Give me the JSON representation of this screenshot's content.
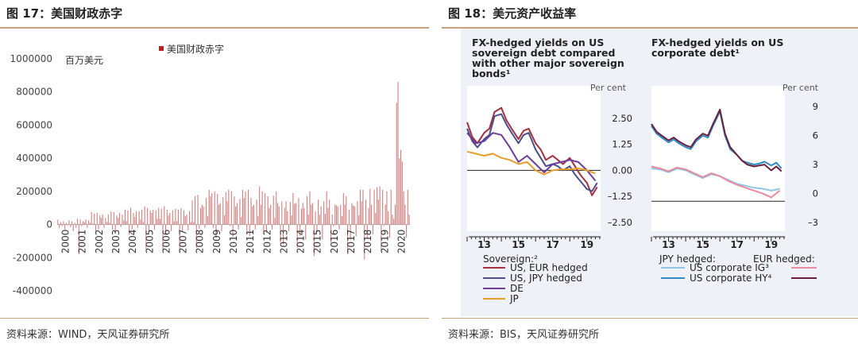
{
  "left": {
    "fig_title": "图 17：美国财政赤字",
    "source": "资料来源：WIND，天风证券研究所",
    "chart_data": {
      "type": "bar",
      "unit_label": "百万美元",
      "legend": "美国财政赤字",
      "color": "#b22222",
      "ylim": [
        -400000,
        1000000
      ],
      "yticks": [
        "1000000",
        "800000",
        "600000",
        "400000",
        "200000",
        "0",
        "-200000",
        "-400000"
      ],
      "ytick_values": [
        1000000,
        800000,
        600000,
        400000,
        200000,
        0,
        -200000,
        -400000
      ],
      "x_years": [
        "2000",
        "2001",
        "2002",
        "2003",
        "2004",
        "2005",
        "2006",
        "2007",
        "2008",
        "2009",
        "2010",
        "2011",
        "2012",
        "2013",
        "2014",
        "2015",
        "2016",
        "2017",
        "2018",
        "2019",
        "2020"
      ],
      "monthly_values": [
        30000,
        -20000,
        15000,
        -10000,
        20000,
        -30000,
        10000,
        -5000,
        25000,
        -15000,
        20000,
        -40000,
        10000,
        -20000,
        35000,
        -180000,
        30000,
        -10000,
        20000,
        15000,
        30000,
        -20000,
        25000,
        10000,
        75000,
        5000,
        65000,
        -40000,
        70000,
        -30000,
        55000,
        40000,
        60000,
        -20000,
        40000,
        15000,
        60000,
        10000,
        80000,
        -30000,
        75000,
        -50000,
        55000,
        40000,
        70000,
        -15000,
        60000,
        25000,
        90000,
        20000,
        85000,
        -60000,
        100000,
        -30000,
        70000,
        45000,
        80000,
        -20000,
        80000,
        30000,
        90000,
        15000,
        110000,
        -150000,
        100000,
        -40000,
        85000,
        70000,
        90000,
        -30000,
        85000,
        35000,
        100000,
        35000,
        95000,
        -160000,
        110000,
        -50000,
        90000,
        55000,
        70000,
        -40000,
        85000,
        20000,
        95000,
        20000,
        90000,
        -170000,
        100000,
        -45000,
        85000,
        50000,
        60000,
        -35000,
        80000,
        15000,
        145000,
        15000,
        170000,
        -140000,
        180000,
        -25000,
        100000,
        120000,
        110000,
        -20000,
        160000,
        50000,
        210000,
        170000,
        190000,
        -20000,
        200000,
        -80000,
        185000,
        120000,
        130000,
        -40000,
        165000,
        55000,
        195000,
        140000,
        210000,
        -10000,
        200000,
        -75000,
        170000,
        110000,
        130000,
        -30000,
        155000,
        45000,
        210000,
        160000,
        200000,
        -40000,
        210000,
        -70000,
        160000,
        110000,
        120000,
        -30000,
        150000,
        50000,
        230000,
        120000,
        200000,
        -60000,
        190000,
        -50000,
        170000,
        100000,
        120000,
        -30000,
        175000,
        40000,
        200000,
        130000,
        110000,
        -110000,
        140000,
        -120000,
        100000,
        140000,
        80000,
        -40000,
        135000,
        55000,
        190000,
        125000,
        130000,
        -140000,
        160000,
        -70000,
        95000,
        130000,
        100000,
        -90000,
        170000,
        60000,
        200000,
        120000,
        130000,
        -190000,
        80000,
        -50000,
        150000,
        60000,
        110000,
        -90000,
        140000,
        65000,
        200000,
        100000,
        150000,
        -110000,
        60000,
        -10000,
        120000,
        115000,
        110000,
        -30000,
        120000,
        50000,
        190000,
        120000,
        170000,
        -180000,
        90000,
        -90000,
        130000,
        115000,
        110000,
        -70000,
        140000,
        55000,
        210000,
        140000,
        210000,
        -210000,
        150000,
        -80000,
        100000,
        215000,
        120000,
        -60000,
        210000,
        70000,
        225000,
        150000,
        230000,
        -160000,
        210000,
        -8000,
        120000,
        200000,
        80000,
        -80000,
        210000,
        60000,
        35000,
        120000,
        735000,
        860000,
        400000,
        450000,
        380000,
        200000,
        120000,
        -80000,
        210000,
        60000
      ]
    }
  },
  "right": {
    "fig_title": "图 18：美元资产收益率",
    "source": "资料来源：BIS，天风证券研究所",
    "chart_data": [
      {
        "type": "line",
        "title": "FX-hedged yields on US sovereign debt compared with other major sovereign bonds",
        "title_lines": [
          "FX-hedged yields on US",
          "sovereign debt compared",
          "with other major sovereign",
          "bonds¹"
        ],
        "unit": "Per cent",
        "ylim": [
          -2.5,
          3.75
        ],
        "yticks": [
          "2.50",
          "1.25",
          "0.00",
          "–1.25",
          "–2.50"
        ],
        "ytick_values": [
          2.5,
          1.25,
          0.0,
          -1.25,
          -2.5
        ],
        "xticks": [
          "13",
          "15",
          "17",
          "19"
        ],
        "xtick_values": [
          2013,
          2015,
          2017,
          2019
        ],
        "xlim": [
          2012,
          2019.8
        ],
        "legend_header": "Sovereign:²",
        "series": [
          {
            "name": "US, EUR hedged",
            "color": "#a32f3f",
            "x": [
              2012.0,
              2012.3,
              2012.6,
              2013.0,
              2013.3,
              2013.6,
              2014.0,
              2014.3,
              2014.6,
              2015.0,
              2015.3,
              2015.6,
              2016.0,
              2016.3,
              2016.6,
              2017.0,
              2017.3,
              2017.6,
              2018.0,
              2018.3,
              2018.6,
              2019.0,
              2019.3,
              2019.6
            ],
            "y": [
              2.3,
              1.6,
              1.3,
              1.8,
              2.0,
              2.8,
              3.0,
              2.4,
              2.0,
              1.5,
              1.9,
              2.0,
              1.3,
              1.0,
              0.5,
              0.7,
              0.5,
              0.3,
              0.6,
              0.2,
              -0.2,
              -0.6,
              -1.2,
              -0.8
            ]
          },
          {
            "name": "US, JPY hedged",
            "color": "#4b4f8c",
            "x": [
              2012.0,
              2012.3,
              2012.6,
              2013.0,
              2013.3,
              2013.6,
              2014.0,
              2014.3,
              2014.6,
              2015.0,
              2015.3,
              2015.6,
              2016.0,
              2016.3,
              2016.6,
              2017.0,
              2017.3,
              2017.6,
              2018.0,
              2018.3,
              2018.6,
              2019.0,
              2019.3,
              2019.6
            ],
            "y": [
              2.0,
              1.4,
              1.1,
              1.5,
              1.7,
              2.6,
              2.7,
              2.2,
              1.8,
              1.3,
              1.7,
              1.8,
              1.0,
              0.6,
              0.2,
              0.3,
              0.2,
              0.0,
              0.2,
              -0.2,
              -0.5,
              -0.9,
              -1.0,
              -0.6
            ]
          },
          {
            "name": "DE",
            "color": "#6d3d9a",
            "x": [
              2012.0,
              2012.5,
              2013.0,
              2013.5,
              2014.0,
              2014.5,
              2015.0,
              2015.5,
              2016.0,
              2016.5,
              2017.0,
              2017.5,
              2018.0,
              2018.5,
              2019.0,
              2019.5
            ],
            "y": [
              1.8,
              1.3,
              1.4,
              1.8,
              1.7,
              1.1,
              0.4,
              0.7,
              0.3,
              -0.1,
              0.3,
              0.4,
              0.5,
              0.4,
              0.0,
              -0.5
            ]
          },
          {
            "name": "JP",
            "color": "#e89e2c",
            "x": [
              2012.0,
              2012.5,
              2013.0,
              2013.5,
              2014.0,
              2014.5,
              2015.0,
              2015.5,
              2016.0,
              2016.5,
              2017.0,
              2017.5,
              2018.0,
              2018.5,
              2019.0,
              2019.5
            ],
            "y": [
              0.9,
              0.8,
              0.7,
              0.8,
              0.6,
              0.5,
              0.3,
              0.4,
              0.0,
              -0.2,
              0.0,
              0.05,
              0.05,
              0.1,
              0.0,
              -0.15
            ]
          }
        ]
      },
      {
        "type": "line",
        "title": "FX-hedged yields on US corporate debt",
        "title_lines": [
          "FX-hedged yields on US",
          "corporate debt¹"
        ],
        "unit": "Per cent",
        "ylim": [
          -3,
          10.5
        ],
        "yticks": [
          "9",
          "6",
          "3",
          "0",
          "–3"
        ],
        "ytick_values": [
          9,
          6,
          3,
          0,
          -3
        ],
        "xticks": [
          "13",
          "15",
          "17",
          "19"
        ],
        "xtick_values": [
          2013,
          2015,
          2017,
          2019
        ],
        "xlim": [
          2012,
          2019.8
        ],
        "legend_headers": [
          "JPY hedged:",
          "EUR hedged:"
        ],
        "series": [
          {
            "name": "US corporate IG³ (JPY hedged)",
            "color": "#8fc6e6",
            "x": [
              2012.0,
              2012.5,
              2013.0,
              2013.5,
              2014.0,
              2014.5,
              2015.0,
              2015.5,
              2016.0,
              2016.5,
              2017.0,
              2017.5,
              2018.0,
              2018.5,
              2019.0,
              2019.5
            ],
            "y": [
              2.6,
              2.5,
              2.2,
              2.6,
              2.4,
              2.0,
              1.6,
              2.0,
              1.8,
              1.4,
              1.0,
              0.8,
              0.6,
              0.5,
              0.3,
              0.5
            ]
          },
          {
            "name": "US corporate IG³ (EUR hedged)",
            "color": "#e98aa0",
            "x": [
              2012.0,
              2012.5,
              2013.0,
              2013.5,
              2014.0,
              2014.5,
              2015.0,
              2015.5,
              2016.0,
              2016.5,
              2017.0,
              2017.5,
              2018.0,
              2018.5,
              2019.0,
              2019.5
            ],
            "y": [
              2.8,
              2.6,
              2.3,
              2.7,
              2.5,
              2.1,
              1.7,
              2.1,
              1.8,
              1.3,
              0.9,
              0.6,
              0.3,
              0.0,
              -0.4,
              0.3
            ]
          },
          {
            "name": "US corporate HY⁴ (JPY hedged)",
            "color": "#2f8ac7",
            "x": [
              2012.0,
              2012.3,
              2012.6,
              2013.0,
              2013.3,
              2013.6,
              2014.0,
              2014.3,
              2014.6,
              2015.0,
              2015.3,
              2015.6,
              2016.0,
              2016.3,
              2016.6,
              2017.0,
              2017.3,
              2017.6,
              2018.0,
              2018.3,
              2018.6,
              2019.0,
              2019.3,
              2019.6
            ],
            "y": [
              7.0,
              6.2,
              5.8,
              5.3,
              5.6,
              5.2,
              4.8,
              4.6,
              5.4,
              6.0,
              5.8,
              7.0,
              8.5,
              6.0,
              4.6,
              4.0,
              3.4,
              3.2,
              3.0,
              3.1,
              3.3,
              2.9,
              3.2,
              2.6
            ]
          },
          {
            "name": "US corporate HY⁴ (EUR hedged)",
            "color": "#6a1f3a",
            "x": [
              2012.0,
              2012.3,
              2012.6,
              2013.0,
              2013.3,
              2013.6,
              2014.0,
              2014.3,
              2014.6,
              2015.0,
              2015.3,
              2015.6,
              2016.0,
              2016.3,
              2016.6,
              2017.0,
              2017.3,
              2017.6,
              2018.0,
              2018.3,
              2018.6,
              2019.0,
              2019.3,
              2019.6
            ],
            "y": [
              7.2,
              6.4,
              6.0,
              5.5,
              5.8,
              5.4,
              5.0,
              4.8,
              5.6,
              6.2,
              6.0,
              7.2,
              8.7,
              6.2,
              4.8,
              4.0,
              3.4,
              3.0,
              2.8,
              2.9,
              3.0,
              2.4,
              2.8,
              2.3
            ]
          }
        ]
      }
    ]
  }
}
